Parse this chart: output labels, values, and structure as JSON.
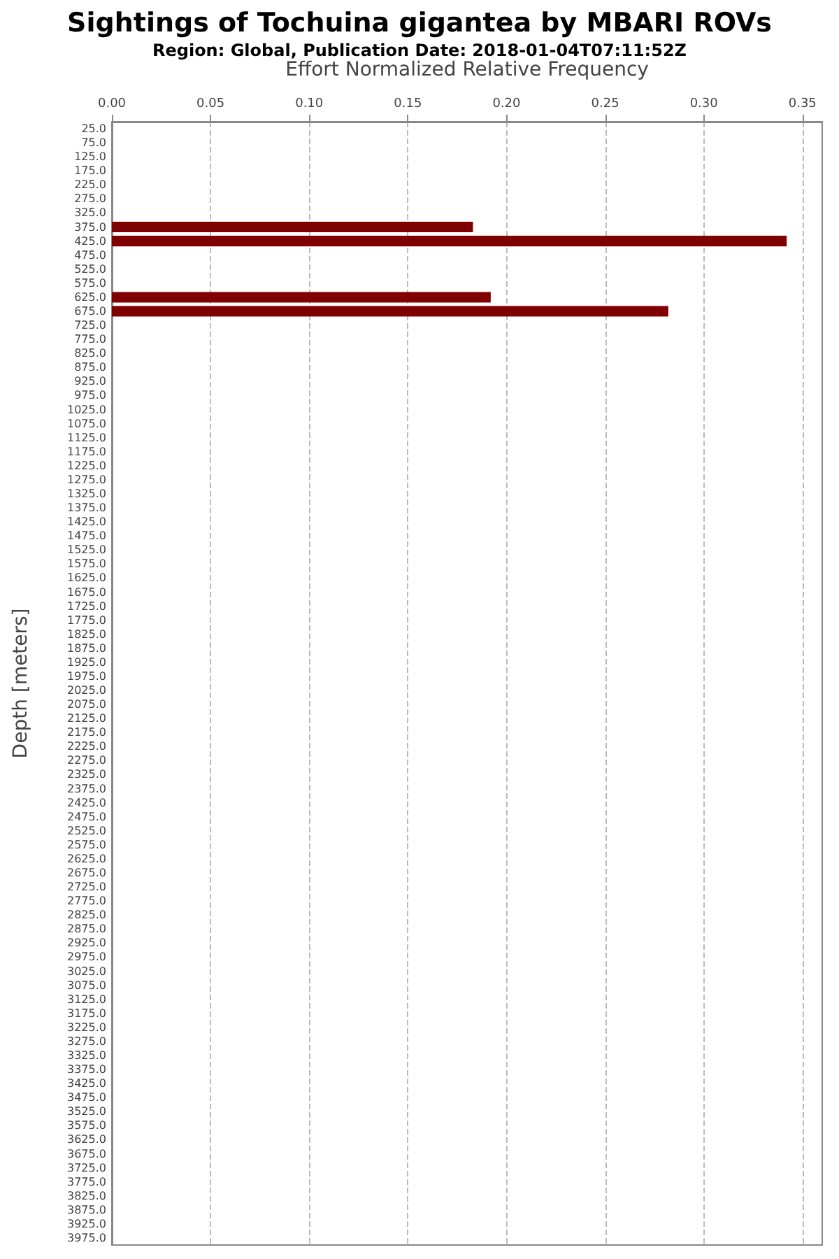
{
  "chart_data": {
    "type": "bar",
    "orientation": "horizontal",
    "title": "Sightings of Tochuina gigantea by MBARI ROVs",
    "subtitle": "Region: Global, Publication Date: 2018-01-04T07:11:52Z",
    "xlabel": "Effort Normalized Relative Frequency",
    "ylabel": "Depth [meters]",
    "categories": [
      "25.0",
      "75.0",
      "125.0",
      "175.0",
      "225.0",
      "275.0",
      "325.0",
      "375.0",
      "425.0",
      "475.0",
      "525.0",
      "575.0",
      "625.0",
      "675.0",
      "725.0",
      "775.0",
      "825.0",
      "875.0",
      "925.0",
      "975.0",
      "1025.0",
      "1075.0",
      "1125.0",
      "1175.0",
      "1225.0",
      "1275.0",
      "1325.0",
      "1375.0",
      "1425.0",
      "1475.0",
      "1525.0",
      "1575.0",
      "1625.0",
      "1675.0",
      "1725.0",
      "1775.0",
      "1825.0",
      "1875.0",
      "1925.0",
      "1975.0",
      "2025.0",
      "2075.0",
      "2125.0",
      "2175.0",
      "2225.0",
      "2275.0",
      "2325.0",
      "2375.0",
      "2425.0",
      "2475.0",
      "2525.0",
      "2575.0",
      "2625.0",
      "2675.0",
      "2725.0",
      "2775.0",
      "2825.0",
      "2875.0",
      "2925.0",
      "2975.0",
      "3025.0",
      "3075.0",
      "3125.0",
      "3175.0",
      "3225.0",
      "3275.0",
      "3325.0",
      "3375.0",
      "3425.0",
      "3475.0",
      "3525.0",
      "3575.0",
      "3625.0",
      "3675.0",
      "3725.0",
      "3775.0",
      "3825.0",
      "3875.0",
      "3925.0",
      "3975.0"
    ],
    "values": [
      0,
      0,
      0,
      0,
      0,
      0,
      0,
      0.183,
      0.342,
      0,
      0,
      0,
      0.192,
      0.282,
      0,
      0,
      0,
      0,
      0,
      0,
      0,
      0,
      0,
      0,
      0,
      0,
      0,
      0,
      0,
      0,
      0,
      0,
      0,
      0,
      0,
      0,
      0,
      0,
      0,
      0,
      0,
      0,
      0,
      0,
      0,
      0,
      0,
      0,
      0,
      0,
      0,
      0,
      0,
      0,
      0,
      0,
      0,
      0,
      0,
      0,
      0,
      0,
      0,
      0,
      0,
      0,
      0,
      0,
      0,
      0,
      0,
      0,
      0,
      0,
      0,
      0,
      0,
      0,
      0,
      0
    ],
    "color": "#7f0000",
    "xlim": [
      0,
      0.36
    ],
    "xticks": [
      {
        "value": 0,
        "label": "0.00"
      },
      {
        "value": 0.05,
        "label": "0.05"
      },
      {
        "value": 0.1,
        "label": "0.10"
      },
      {
        "value": 0.15,
        "label": "0.15"
      },
      {
        "value": 0.2,
        "label": "0.20"
      },
      {
        "value": 0.25,
        "label": "0.25"
      },
      {
        "value": 0.3,
        "label": "0.30"
      },
      {
        "value": 0.35,
        "label": "0.35"
      }
    ],
    "grid": "x"
  }
}
